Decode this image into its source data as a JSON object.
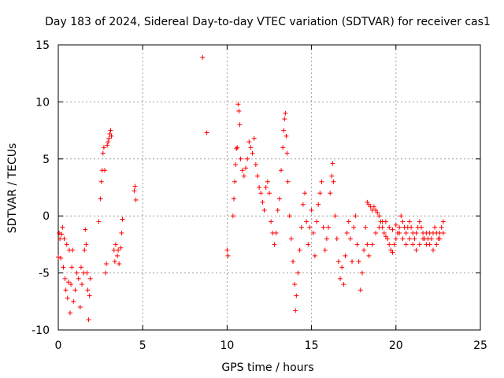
{
  "chart_data": {
    "type": "scatter",
    "title": "Day 183 of 2024, Sidereal Day-to-day VTEC variation (SDTVAR) for receiver cas1",
    "xlabel": "GPS time / hours",
    "ylabel": "SDTVAR / TECUs",
    "xlim": [
      0,
      25
    ],
    "ylim": [
      -10,
      15
    ],
    "xticks": [
      0,
      5,
      10,
      15,
      20,
      25
    ],
    "yticks": [
      -10,
      -5,
      0,
      5,
      10,
      15
    ],
    "xtick_labels": [
      "0",
      "5",
      "10",
      "15",
      "20",
      "25"
    ],
    "ytick_labels": [
      "-10",
      "-5",
      "0",
      "5",
      "10",
      "15"
    ],
    "grid": true,
    "marker": "+",
    "color": "#ff0000",
    "series": [
      {
        "name": "cas1",
        "points": [
          [
            0.0,
            -3.6
          ],
          [
            0.05,
            -1.5
          ],
          [
            0.1,
            -2.0
          ],
          [
            0.15,
            -3.7
          ],
          [
            0.2,
            -1.6
          ],
          [
            0.25,
            -1.0
          ],
          [
            0.3,
            -4.5
          ],
          [
            0.35,
            -2.0
          ],
          [
            0.4,
            -5.5
          ],
          [
            0.45,
            -6.5
          ],
          [
            0.5,
            -2.5
          ],
          [
            0.55,
            -7.2
          ],
          [
            0.6,
            -5.8
          ],
          [
            0.65,
            -3.0
          ],
          [
            0.7,
            -8.5
          ],
          [
            0.75,
            -6.0
          ],
          [
            0.8,
            -4.5
          ],
          [
            0.85,
            -3.0
          ],
          [
            0.9,
            -7.5
          ],
          [
            1.0,
            -6.5
          ],
          [
            1.1,
            -5.0
          ],
          [
            1.2,
            -5.5
          ],
          [
            1.3,
            -8.0
          ],
          [
            1.35,
            -4.5
          ],
          [
            1.4,
            -6.0
          ],
          [
            1.5,
            -5.0
          ],
          [
            1.55,
            -3.0
          ],
          [
            1.6,
            -1.2
          ],
          [
            1.65,
            -2.5
          ],
          [
            1.7,
            -5.0
          ],
          [
            1.75,
            -6.5
          ],
          [
            1.8,
            -9.1
          ],
          [
            1.85,
            -7.0
          ],
          [
            1.9,
            -5.5
          ],
          [
            2.4,
            -0.5
          ],
          [
            2.5,
            1.5
          ],
          [
            2.55,
            3.0
          ],
          [
            2.6,
            4.0
          ],
          [
            2.65,
            5.5
          ],
          [
            2.7,
            6.0
          ],
          [
            2.75,
            4.0
          ],
          [
            2.8,
            -5.0
          ],
          [
            2.85,
            -4.2
          ],
          [
            2.9,
            6.2
          ],
          [
            2.95,
            6.5
          ],
          [
            3.0,
            6.8
          ],
          [
            3.05,
            7.2
          ],
          [
            3.1,
            7.5
          ],
          [
            3.15,
            7.0
          ],
          [
            3.3,
            -3.0
          ],
          [
            3.35,
            -4.0
          ],
          [
            3.4,
            -2.5
          ],
          [
            3.5,
            -3.5
          ],
          [
            3.55,
            -3.0
          ],
          [
            3.6,
            -4.2
          ],
          [
            3.7,
            -2.8
          ],
          [
            3.75,
            -1.5
          ],
          [
            3.8,
            -0.3
          ],
          [
            4.5,
            2.2
          ],
          [
            4.55,
            2.6
          ],
          [
            4.6,
            1.4
          ],
          [
            8.55,
            13.9
          ],
          [
            8.8,
            7.3
          ],
          [
            10.0,
            -3.0
          ],
          [
            10.05,
            -3.5
          ],
          [
            10.35,
            0.0
          ],
          [
            10.4,
            1.5
          ],
          [
            10.45,
            3.0
          ],
          [
            10.5,
            4.5
          ],
          [
            10.55,
            5.9
          ],
          [
            10.6,
            6.0
          ],
          [
            10.65,
            9.8
          ],
          [
            10.7,
            9.2
          ],
          [
            10.75,
            8.0
          ],
          [
            10.8,
            5.0
          ],
          [
            10.9,
            4.0
          ],
          [
            11.0,
            3.5
          ],
          [
            11.1,
            4.2
          ],
          [
            11.2,
            5.0
          ],
          [
            11.3,
            6.5
          ],
          [
            11.4,
            6.0
          ],
          [
            11.5,
            5.5
          ],
          [
            11.6,
            6.8
          ],
          [
            11.7,
            4.5
          ],
          [
            11.8,
            3.5
          ],
          [
            11.9,
            2.5
          ],
          [
            12.0,
            2.0
          ],
          [
            12.1,
            1.2
          ],
          [
            12.2,
            0.5
          ],
          [
            12.3,
            2.5
          ],
          [
            12.4,
            3.0
          ],
          [
            12.5,
            2.0
          ],
          [
            12.6,
            -0.5
          ],
          [
            12.7,
            -1.5
          ],
          [
            12.8,
            -2.5
          ],
          [
            12.9,
            -1.5
          ],
          [
            13.0,
            0.5
          ],
          [
            13.1,
            1.5
          ],
          [
            13.2,
            4.0
          ],
          [
            13.3,
            6.0
          ],
          [
            13.35,
            7.5
          ],
          [
            13.4,
            8.5
          ],
          [
            13.45,
            9.0
          ],
          [
            13.5,
            7.0
          ],
          [
            13.55,
            5.5
          ],
          [
            13.6,
            3.0
          ],
          [
            13.7,
            0.0
          ],
          [
            13.8,
            -2.0
          ],
          [
            13.9,
            -4.0
          ],
          [
            14.0,
            -6.0
          ],
          [
            14.05,
            -8.3
          ],
          [
            14.1,
            -7.0
          ],
          [
            14.2,
            -5.0
          ],
          [
            14.3,
            -3.0
          ],
          [
            14.4,
            -1.0
          ],
          [
            14.5,
            1.0
          ],
          [
            14.6,
            2.0
          ],
          [
            14.7,
            -0.5
          ],
          [
            14.8,
            -2.5
          ],
          [
            14.9,
            -1.0
          ],
          [
            15.0,
            0.5
          ],
          [
            15.1,
            -1.5
          ],
          [
            15.2,
            -3.5
          ],
          [
            15.3,
            -0.5
          ],
          [
            15.4,
            1.0
          ],
          [
            15.5,
            2.0
          ],
          [
            15.6,
            3.0
          ],
          [
            15.7,
            -1.0
          ],
          [
            15.8,
            -3.0
          ],
          [
            15.9,
            -2.0
          ],
          [
            16.0,
            -1.0
          ],
          [
            16.1,
            2.0
          ],
          [
            16.2,
            3.5
          ],
          [
            16.25,
            4.6
          ],
          [
            16.3,
            3.0
          ],
          [
            16.4,
            0.0
          ],
          [
            16.5,
            -2.0
          ],
          [
            16.6,
            -4.0
          ],
          [
            16.7,
            -5.5
          ],
          [
            16.8,
            -4.5
          ],
          [
            16.9,
            -6.0
          ],
          [
            17.0,
            -3.5
          ],
          [
            17.1,
            -1.5
          ],
          [
            17.2,
            -0.5
          ],
          [
            17.3,
            -2.0
          ],
          [
            17.4,
            -4.0
          ],
          [
            17.5,
            -1.0
          ],
          [
            17.6,
            0.0
          ],
          [
            17.7,
            -2.5
          ],
          [
            17.8,
            -4.0
          ],
          [
            17.9,
            -6.5
          ],
          [
            18.0,
            -5.0
          ],
          [
            18.1,
            -3.0
          ],
          [
            18.2,
            -1.0
          ],
          [
            18.3,
            1.2
          ],
          [
            18.4,
            1.0
          ],
          [
            18.5,
            0.8
          ],
          [
            18.6,
            0.5
          ],
          [
            18.7,
            0.8
          ],
          [
            18.8,
            0.5
          ],
          [
            18.9,
            0.3
          ],
          [
            19.0,
            0.0
          ],
          [
            19.1,
            -0.5
          ],
          [
            19.2,
            -1.0
          ],
          [
            19.3,
            -1.5
          ],
          [
            19.4,
            -1.8
          ],
          [
            19.5,
            -2.0
          ],
          [
            19.6,
            -2.5
          ],
          [
            19.7,
            -3.0
          ],
          [
            19.8,
            -3.2
          ],
          [
            19.9,
            -2.5
          ],
          [
            20.0,
            -2.0
          ],
          [
            20.1,
            -1.5
          ],
          [
            20.2,
            -1.0
          ],
          [
            20.3,
            0.0
          ],
          [
            20.4,
            -0.5
          ],
          [
            20.5,
            -1.0
          ],
          [
            20.6,
            -1.5
          ],
          [
            20.7,
            -1.0
          ],
          [
            20.8,
            -0.5
          ],
          [
            20.9,
            -1.0
          ],
          [
            21.0,
            -1.5
          ],
          [
            21.1,
            -2.0
          ],
          [
            21.2,
            -1.5
          ],
          [
            21.3,
            -1.0
          ],
          [
            21.4,
            -0.5
          ],
          [
            21.5,
            -1.0
          ],
          [
            21.6,
            -1.5
          ],
          [
            21.7,
            -2.0
          ],
          [
            21.8,
            -2.5
          ],
          [
            21.9,
            -2.0
          ],
          [
            22.0,
            -1.5
          ],
          [
            22.1,
            -2.0
          ],
          [
            22.2,
            -1.5
          ],
          [
            22.3,
            -1.0
          ],
          [
            22.4,
            -1.5
          ],
          [
            22.5,
            -2.0
          ],
          [
            22.6,
            -1.5
          ],
          [
            22.7,
            -1.0
          ],
          [
            22.8,
            -0.5
          ],
          [
            18.3,
            -2.5
          ],
          [
            18.4,
            -3.5
          ],
          [
            18.6,
            -2.5
          ],
          [
            18.8,
            -1.5
          ],
          [
            19.0,
            -1.0
          ],
          [
            19.2,
            -0.5
          ],
          [
            19.4,
            -0.5
          ],
          [
            19.6,
            -1.0
          ],
          [
            19.8,
            -1.2
          ],
          [
            20.0,
            -0.8
          ],
          [
            20.2,
            -1.5
          ],
          [
            20.4,
            -2.0
          ],
          [
            20.6,
            -2.5
          ],
          [
            20.8,
            -2.0
          ],
          [
            21.0,
            -2.5
          ],
          [
            21.2,
            -3.0
          ],
          [
            21.4,
            -2.5
          ],
          [
            21.6,
            -2.0
          ],
          [
            21.8,
            -1.5
          ],
          [
            22.0,
            -2.5
          ],
          [
            22.2,
            -3.0
          ],
          [
            22.4,
            -2.5
          ],
          [
            22.6,
            -2.0
          ],
          [
            22.8,
            -1.5
          ]
        ]
      }
    ]
  }
}
